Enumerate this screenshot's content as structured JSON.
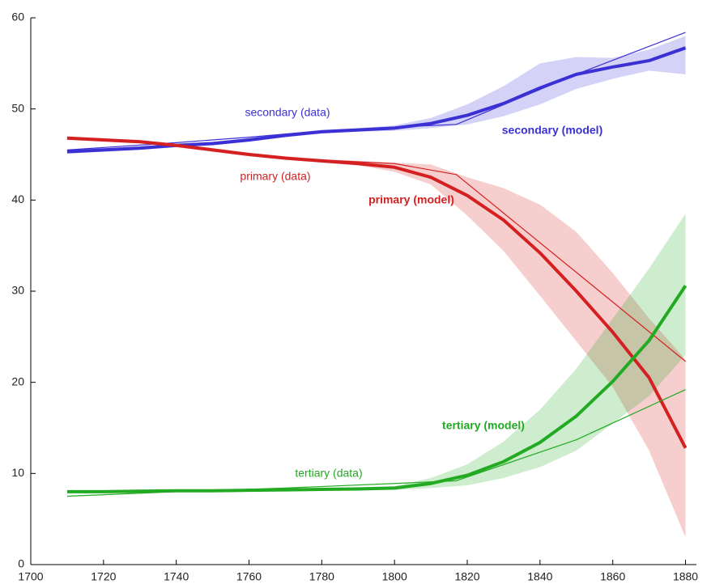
{
  "chart_data": {
    "type": "line",
    "xlim": [
      1700,
      1883
    ],
    "ylim": [
      0,
      60
    ],
    "xticks": [
      1700,
      1720,
      1740,
      1760,
      1780,
      1800,
      1820,
      1840,
      1860,
      1880
    ],
    "yticks": [
      0,
      10,
      20,
      30,
      40,
      50,
      60
    ],
    "series": [
      {
        "name": "secondary (data)",
        "color": "#3b30d4",
        "style": "thin",
        "x": [
          1710,
          1740,
          1760,
          1780,
          1800,
          1817,
          1850,
          1880
        ],
        "values": [
          45.5,
          46.3,
          46.9,
          47.6,
          48.0,
          48.3,
          53.8,
          58.4
        ]
      },
      {
        "name": "secondary (model)",
        "color": "#3b30d4",
        "style": "thick",
        "x": [
          1710,
          1720,
          1730,
          1740,
          1750,
          1760,
          1770,
          1780,
          1790,
          1800,
          1810,
          1820,
          1830,
          1840,
          1850,
          1860,
          1870,
          1880
        ],
        "values": [
          45.3,
          45.5,
          45.7,
          46.0,
          46.2,
          46.6,
          47.1,
          47.5,
          47.7,
          47.9,
          48.4,
          49.3,
          50.6,
          52.3,
          53.8,
          54.6,
          55.3,
          56.7
        ],
        "upper": [
          45.5,
          45.7,
          45.9,
          46.2,
          46.4,
          46.8,
          47.3,
          47.7,
          47.9,
          48.2,
          49.0,
          50.5,
          52.5,
          55.0,
          55.7,
          55.6,
          56.5,
          58.0
        ],
        "lower": [
          45.1,
          45.3,
          45.5,
          45.8,
          46.0,
          46.4,
          46.9,
          47.3,
          47.5,
          47.6,
          47.9,
          48.3,
          49.2,
          50.5,
          52.2,
          53.3,
          54.2,
          53.8
        ]
      },
      {
        "name": "primary (data)",
        "color": "#d42020",
        "style": "thin",
        "x": [
          1710,
          1740,
          1770,
          1800,
          1817,
          1880
        ],
        "values": [
          46.9,
          46.1,
          44.6,
          44.0,
          42.8,
          22.3
        ]
      },
      {
        "name": "primary (model)",
        "color": "#d42020",
        "style": "thick",
        "x": [
          1710,
          1720,
          1730,
          1740,
          1750,
          1760,
          1770,
          1780,
          1790,
          1800,
          1810,
          1820,
          1830,
          1840,
          1850,
          1860,
          1870,
          1880
        ],
        "values": [
          46.8,
          46.6,
          46.4,
          46.0,
          45.5,
          45.0,
          44.6,
          44.3,
          44.0,
          43.6,
          42.5,
          40.5,
          37.8,
          34.2,
          30.0,
          25.5,
          20.5,
          12.8
        ],
        "upper": [
          47.0,
          46.8,
          46.6,
          46.2,
          45.7,
          45.2,
          44.8,
          44.5,
          44.3,
          44.1,
          43.9,
          42.5,
          41.3,
          39.5,
          36.5,
          32.0,
          27.0,
          22.5
        ],
        "lower": [
          46.6,
          46.4,
          46.2,
          45.8,
          45.3,
          44.8,
          44.4,
          44.1,
          43.8,
          43.1,
          41.7,
          38.3,
          34.4,
          29.5,
          24.5,
          19.5,
          12.5,
          3.0
        ]
      },
      {
        "name": "tertiary (data)",
        "color": "#22aa22",
        "style": "thin",
        "x": [
          1710,
          1740,
          1770,
          1800,
          1817,
          1850,
          1880
        ],
        "values": [
          7.5,
          8.0,
          8.4,
          8.9,
          9.2,
          13.7,
          19.2
        ]
      },
      {
        "name": "tertiary (model)",
        "color": "#22aa22",
        "style": "thick",
        "x": [
          1710,
          1720,
          1730,
          1740,
          1750,
          1760,
          1770,
          1780,
          1790,
          1800,
          1810,
          1820,
          1830,
          1840,
          1850,
          1860,
          1870,
          1880
        ],
        "values": [
          8.0,
          8.0,
          8.05,
          8.1,
          8.1,
          8.15,
          8.2,
          8.25,
          8.3,
          8.4,
          8.9,
          9.8,
          11.3,
          13.4,
          16.3,
          20.1,
          24.6,
          30.6
        ],
        "upper": [
          8.15,
          8.15,
          8.2,
          8.25,
          8.25,
          8.3,
          8.35,
          8.4,
          8.5,
          8.6,
          9.5,
          11.0,
          13.5,
          17.0,
          21.5,
          27.0,
          32.5,
          38.5
        ],
        "lower": [
          7.85,
          7.85,
          7.9,
          7.95,
          7.95,
          8.0,
          8.05,
          8.1,
          8.15,
          8.2,
          8.4,
          8.7,
          9.5,
          10.7,
          12.5,
          15.5,
          18.5,
          23.0
        ]
      }
    ]
  }
}
